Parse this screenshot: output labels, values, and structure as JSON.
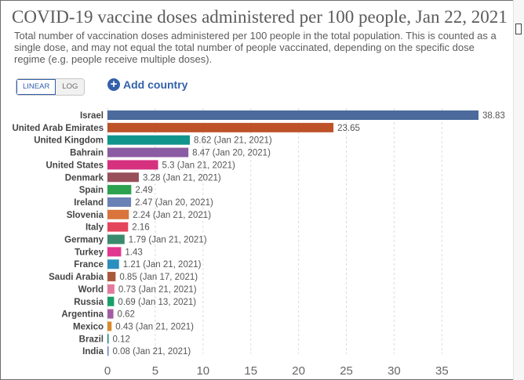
{
  "header": {
    "title": "COVID-19 vaccine doses administered per 100 people, Jan 22, 2021",
    "subtitle": "Total number of vaccination doses administered per 100 people in the total population. This is counted as a single dose, and may not equal the total number of people vaccinated, depending on the specific dose regime (e.g. people receive multiple doses)."
  },
  "controls": {
    "linear_label": "LINEAR",
    "log_label": "LOG",
    "add_country_label": "Add country",
    "add_country_icon": "plus-circle-icon",
    "active_scale": "linear"
  },
  "chart_data": {
    "type": "bar",
    "orientation": "horizontal",
    "categories": [
      "Israel",
      "United Arab Emirates",
      "United Kingdom",
      "Bahrain",
      "United States",
      "Denmark",
      "Spain",
      "Ireland",
      "Slovenia",
      "Italy",
      "Germany",
      "Turkey",
      "France",
      "Saudi Arabia",
      "World",
      "Russia",
      "Argentina",
      "Mexico",
      "Brazil",
      "India"
    ],
    "values": [
      38.83,
      23.65,
      8.62,
      8.47,
      5.3,
      3.28,
      2.49,
      2.47,
      2.24,
      2.16,
      1.79,
      1.43,
      1.21,
      0.85,
      0.73,
      0.69,
      0.62,
      0.43,
      0.12,
      0.08
    ],
    "value_labels": [
      "38.83",
      "23.65",
      "8.62 (Jan 21, 2021)",
      "8.47 (Jan 20, 2021)",
      "5.3 (Jan 21, 2021)",
      "3.28 (Jan 21, 2021)",
      "2.49",
      "2.47 (Jan 20, 2021)",
      "2.24 (Jan 21, 2021)",
      "2.16",
      "1.79 (Jan 21, 2021)",
      "1.43",
      "1.21 (Jan 21, 2021)",
      "0.85 (Jan 17, 2021)",
      "0.73 (Jan 21, 2021)",
      "0.69 (Jan 13, 2021)",
      "0.62",
      "0.43 (Jan 21, 2021)",
      "0.12",
      "0.08 (Jan 21, 2021)"
    ],
    "colors": [
      "#4c6a9c",
      "#bd5229",
      "#11948c",
      "#8b5ba3",
      "#d5317f",
      "#994f5a",
      "#2ca14f",
      "#6a81b5",
      "#d8743c",
      "#e5455a",
      "#3a8a6e",
      "#e1378f",
      "#2a8fbf",
      "#aa5a3c",
      "#e27a9c",
      "#1a9e6a",
      "#a35ca3",
      "#d98a2b",
      "#1a8a72",
      "#6d7fc0"
    ],
    "x_ticks": [
      0,
      5,
      10,
      15,
      20,
      25,
      30,
      35
    ],
    "xlim": [
      0,
      38.83
    ],
    "grid": true,
    "title": "COVID-19 vaccine doses administered per 100 people, Jan 22, 2021"
  }
}
